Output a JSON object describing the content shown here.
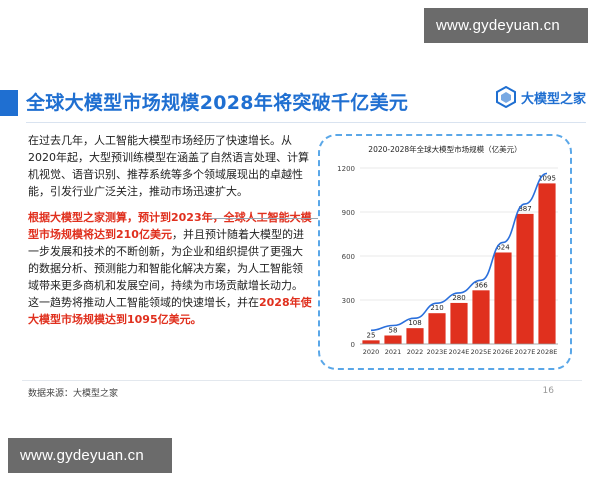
{
  "watermark": {
    "top": "www.gydeyuan.cn",
    "bottom": "www.gydeyuan.cn"
  },
  "slide": {
    "title": "全球大模型市场规模2028年将突破千亿美元",
    "logo_text": "大模型之家",
    "para1": "在过去几年，人工智能大模型市场经历了快速增长。从2020年起，大型预训练模型在涵盖了自然语言处理、计算机视觉、语音识别、推荐系统等多个领域展现出的卓越性能，引发行业广泛关注，推动市场迅速扩大。",
    "para2_hl1": "根据大模型之家测算，预计到2023年，全球人工智能大模型市场规模将达到210亿美元",
    "para2_mid": "，并且预计随着大模型的进一步发展和技术的不断创新，为企业和组织提供了更强大的数据分析、预测能力和智能化解决方案，为人工智能领域带来更多商机和发展空间，持续为市场贡献增长动力。这一趋势将推动人工智能领域的快速增长，并在",
    "para2_hl2": "2028年使大模型市场规模达到1095亿美元。",
    "source": "数据来源：大模型之家",
    "page": "16"
  },
  "colors": {
    "accent": "#1f6fd1",
    "bar": "#e0301e",
    "line": "#2a6fdc",
    "highlight": "#e0301e"
  },
  "chart_data": {
    "type": "bar",
    "title": "2020-2028年全球大模型市场规模（亿美元）",
    "categories": [
      "2020",
      "2021",
      "2022",
      "2023E",
      "2024E",
      "2025E",
      "2026E",
      "2027E",
      "2028E"
    ],
    "values": [
      25,
      58,
      108,
      210,
      280,
      366,
      624,
      887,
      1095
    ],
    "ylim": [
      0,
      1200
    ],
    "yticks": [
      0,
      300,
      600,
      900,
      1200
    ],
    "trend_line": true,
    "grid": true
  }
}
